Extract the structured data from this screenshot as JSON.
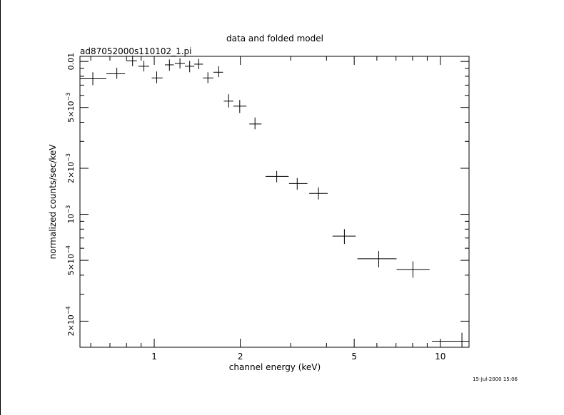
{
  "chart_data": {
    "type": "scatter",
    "title": "data and folded model",
    "subtitle": "ad87052000s110102_1.pi",
    "xlabel": "channel energy (keV)",
    "ylabel": "normalized counts/sec/keV",
    "xscale": "log",
    "yscale": "log",
    "xlim": [
      0.55,
      12.6
    ],
    "ylim": [
      0.000135,
      0.0108
    ],
    "grid": false,
    "x_ticks": [
      {
        "value": 1,
        "label": "1"
      },
      {
        "value": 2,
        "label": "2"
      },
      {
        "value": 5,
        "label": "5"
      },
      {
        "value": 10,
        "label": "10"
      }
    ],
    "y_ticks": [
      {
        "value": 0.01,
        "mantissa": "0.01",
        "exponent": ""
      },
      {
        "value": 0.005,
        "mantissa": "5×10",
        "exponent": "−3"
      },
      {
        "value": 0.002,
        "mantissa": "2×10",
        "exponent": "−3"
      },
      {
        "value": 0.001,
        "mantissa": "10",
        "exponent": "−3"
      },
      {
        "value": 0.0005,
        "mantissa": "5×10",
        "exponent": "−4"
      },
      {
        "value": 0.0002,
        "mantissa": "2×10",
        "exponent": "−4"
      }
    ],
    "series": [
      {
        "style": "crosses",
        "points": [
          {
            "x": 0.61,
            "xlo": 0.55,
            "xhi": 0.68,
            "y": 0.0077,
            "ylo": 0.007,
            "yhi": 0.0085
          },
          {
            "x": 0.74,
            "xlo": 0.68,
            "xhi": 0.79,
            "y": 0.0083,
            "ylo": 0.0077,
            "yhi": 0.0091
          },
          {
            "x": 0.84,
            "xlo": 0.8,
            "xhi": 0.87,
            "y": 0.0101,
            "ylo": 0.0093,
            "yhi": 0.0109
          },
          {
            "x": 0.92,
            "xlo": 0.88,
            "xhi": 0.96,
            "y": 0.0093,
            "ylo": 0.0086,
            "yhi": 0.0101
          },
          {
            "x": 1.02,
            "xlo": 0.98,
            "xhi": 1.07,
            "y": 0.0078,
            "ylo": 0.0072,
            "yhi": 0.0086
          },
          {
            "x": 1.13,
            "xlo": 1.09,
            "xhi": 1.17,
            "y": 0.0095,
            "ylo": 0.0087,
            "yhi": 0.0103
          },
          {
            "x": 1.23,
            "xlo": 1.18,
            "xhi": 1.28,
            "y": 0.0097,
            "ylo": 0.009,
            "yhi": 0.0105
          },
          {
            "x": 1.33,
            "xlo": 1.28,
            "xhi": 1.38,
            "y": 0.0093,
            "ylo": 0.0085,
            "yhi": 0.0101
          },
          {
            "x": 1.43,
            "xlo": 1.38,
            "xhi": 1.48,
            "y": 0.0096,
            "ylo": 0.0089,
            "yhi": 0.0104
          },
          {
            "x": 1.54,
            "xlo": 1.48,
            "xhi": 1.61,
            "y": 0.0078,
            "ylo": 0.0072,
            "yhi": 0.0085
          },
          {
            "x": 1.68,
            "xlo": 1.61,
            "xhi": 1.74,
            "y": 0.0085,
            "ylo": 0.0079,
            "yhi": 0.0093
          },
          {
            "x": 1.82,
            "xlo": 1.75,
            "xhi": 1.89,
            "y": 0.0055,
            "ylo": 0.005,
            "yhi": 0.0061
          },
          {
            "x": 1.99,
            "xlo": 1.89,
            "xhi": 2.1,
            "y": 0.0051,
            "ylo": 0.0046,
            "yhi": 0.0056
          },
          {
            "x": 2.25,
            "xlo": 2.15,
            "xhi": 2.37,
            "y": 0.0039,
            "ylo": 0.0036,
            "yhi": 0.0043
          },
          {
            "x": 2.68,
            "xlo": 2.45,
            "xhi": 2.95,
            "y": 0.00177,
            "ylo": 0.00162,
            "yhi": 0.00192
          },
          {
            "x": 3.16,
            "xlo": 2.96,
            "xhi": 3.43,
            "y": 0.00159,
            "ylo": 0.00145,
            "yhi": 0.00173
          },
          {
            "x": 3.75,
            "xlo": 3.48,
            "xhi": 4.04,
            "y": 0.00137,
            "ylo": 0.00125,
            "yhi": 0.0015
          },
          {
            "x": 4.62,
            "xlo": 4.2,
            "xhi": 5.06,
            "y": 0.00072,
            "ylo": 0.00064,
            "yhi": 0.0008
          },
          {
            "x": 6.09,
            "xlo": 5.13,
            "xhi": 7.03,
            "y": 0.000512,
            "ylo": 0.00045,
            "yhi": 0.000575
          },
          {
            "x": 8.02,
            "xlo": 7.03,
            "xhi": 9.17,
            "y": 0.000436,
            "ylo": 0.000385,
            "yhi": 0.000492
          },
          {
            "x": 11.9,
            "xlo": 9.35,
            "xhi": 12.6,
            "y": 0.000148,
            "ylo": 0.000135,
            "yhi": 0.000168
          }
        ]
      }
    ]
  },
  "footer": {
    "timestamp": "15-Jul-2000 15:06"
  }
}
